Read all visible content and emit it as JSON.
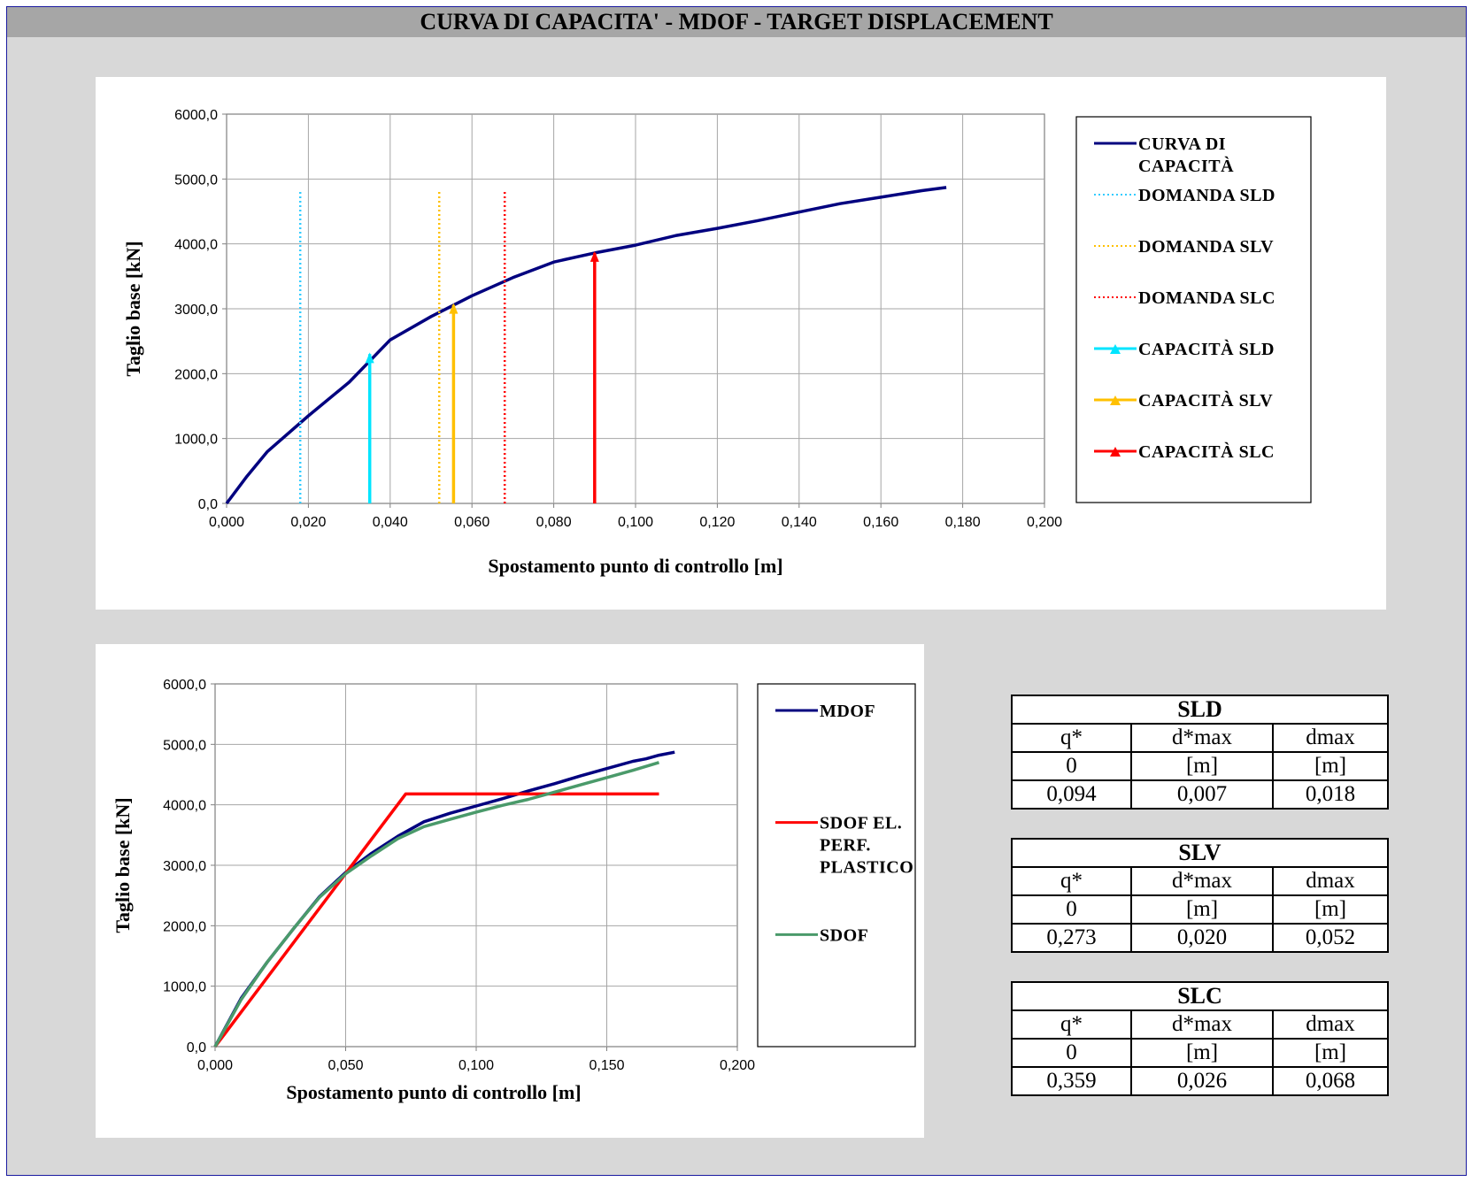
{
  "page": {
    "title": "CURVA DI CAPACITA' - MDOF - TARGET DISPLACEMENT"
  },
  "chart_data": [
    {
      "type": "line",
      "xlabel": "Spostamento punto di controllo [m]",
      "ylabel": "Taglio base [kN]",
      "xlim": [
        0,
        0.2
      ],
      "ylim": [
        0,
        6000
      ],
      "x_ticks": [
        "0,000",
        "0,020",
        "0,040",
        "0,060",
        "0,080",
        "0,100",
        "0,120",
        "0,140",
        "0,160",
        "0,180",
        "0,200"
      ],
      "y_ticks": [
        "0,0",
        "1000,0",
        "2000,0",
        "3000,0",
        "4000,0",
        "5000,0",
        "6000,0"
      ],
      "grid": true,
      "legend_position": "right",
      "series": [
        {
          "name": "CURVA DI CAPACITÀ",
          "style": "solid",
          "color": "#00007f",
          "x": [
            0,
            0.005,
            0.01,
            0.02,
            0.03,
            0.04,
            0.05,
            0.06,
            0.07,
            0.08,
            0.09,
            0.1,
            0.11,
            0.12,
            0.13,
            0.14,
            0.15,
            0.16,
            0.17,
            0.176
          ],
          "y": [
            0,
            420,
            800,
            1350,
            1870,
            2520,
            2880,
            3200,
            3480,
            3720,
            3860,
            3980,
            4130,
            4240,
            4360,
            4490,
            4620,
            4720,
            4820,
            4870
          ]
        },
        {
          "name": "DOMANDA SLD",
          "style": "dotted",
          "color": "#33ccff",
          "x": [
            0.018,
            0.018
          ],
          "y": [
            0,
            4800
          ]
        },
        {
          "name": "DOMANDA SLV",
          "style": "dotted",
          "color": "#ffc000",
          "x": [
            0.052,
            0.052
          ],
          "y": [
            0,
            4800
          ]
        },
        {
          "name": "DOMANDA SLC",
          "style": "dotted",
          "color": "#ff0000",
          "x": [
            0.068,
            0.068
          ],
          "y": [
            0,
            4800
          ]
        },
        {
          "name": "CAPACITÀ SLD",
          "style": "arrow",
          "color": "#00e5ff",
          "x": [
            0.035,
            0.035
          ],
          "y": [
            0,
            2300
          ]
        },
        {
          "name": "CAPACITÀ SLV",
          "style": "arrow",
          "color": "#ffc000",
          "x": [
            0.0555,
            0.0555
          ],
          "y": [
            0,
            3060
          ]
        },
        {
          "name": "CAPACITÀ SLC",
          "style": "arrow",
          "color": "#ff0000",
          "x": [
            0.09,
            0.09
          ],
          "y": [
            0,
            3860
          ]
        }
      ]
    },
    {
      "type": "line",
      "xlabel": "Spostamento punto di controllo [m]",
      "ylabel": "Taglio base [kN]",
      "xlim": [
        0,
        0.2
      ],
      "ylim": [
        0,
        6000
      ],
      "x_ticks": [
        "0,000",
        "0,050",
        "0,100",
        "0,150",
        "0,200"
      ],
      "y_ticks": [
        "0,0",
        "1000,0",
        "2000,0",
        "3000,0",
        "4000,0",
        "5000,0",
        "6000,0"
      ],
      "grid": true,
      "legend_position": "right",
      "series": [
        {
          "name": "MDOF",
          "style": "solid",
          "color": "#00007f",
          "x": [
            0,
            0.01,
            0.02,
            0.03,
            0.04,
            0.05,
            0.06,
            0.07,
            0.08,
            0.09,
            0.1,
            0.11,
            0.12,
            0.13,
            0.14,
            0.15,
            0.16,
            0.165,
            0.17,
            0.176
          ],
          "y": [
            0,
            800,
            1400,
            1950,
            2480,
            2880,
            3200,
            3480,
            3720,
            3860,
            3980,
            4100,
            4230,
            4350,
            4480,
            4600,
            4720,
            4760,
            4820,
            4870
          ]
        },
        {
          "name": "SDOF EL. PERF. PLASTICO",
          "style": "solid",
          "color": "#ff0000",
          "x": [
            0,
            0.073,
            0.17
          ],
          "y": [
            0,
            4180,
            4180
          ]
        },
        {
          "name": "SDOF",
          "style": "solid",
          "color": "#4a9a6a",
          "x": [
            0,
            0.01,
            0.02,
            0.03,
            0.04,
            0.05,
            0.06,
            0.07,
            0.08,
            0.09,
            0.1,
            0.11,
            0.12,
            0.13,
            0.14,
            0.15,
            0.16,
            0.17
          ],
          "y": [
            0,
            780,
            1400,
            1950,
            2470,
            2860,
            3160,
            3440,
            3640,
            3760,
            3880,
            3990,
            4090,
            4210,
            4330,
            4450,
            4570,
            4700
          ]
        }
      ]
    }
  ],
  "tables": [
    {
      "title": "SLD",
      "headers": [
        "q*",
        "d*max",
        "dmax"
      ],
      "units": [
        "0",
        "[m]",
        "[m]"
      ],
      "values": [
        "0,094",
        "0,007",
        "0,018"
      ]
    },
    {
      "title": "SLV",
      "headers": [
        "q*",
        "d*max",
        "dmax"
      ],
      "units": [
        "0",
        "[m]",
        "[m]"
      ],
      "values": [
        "0,273",
        "0,020",
        "0,052"
      ]
    },
    {
      "title": "SLC",
      "headers": [
        "q*",
        "d*max",
        "dmax"
      ],
      "units": [
        "0",
        "[m]",
        "[m]"
      ],
      "values": [
        "0,359",
        "0,026",
        "0,068"
      ]
    }
  ]
}
